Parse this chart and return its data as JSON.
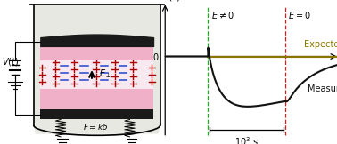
{
  "fig_width": 3.78,
  "fig_height": 1.62,
  "dpi": 100,
  "beaker_bg": "#e8e8e2",
  "pink_color": "#f0b0c8",
  "electrode_color": "#1a1a1a",
  "plus_color": "#aa0000",
  "minus_color": "#2244cc",
  "zero_line_color": "#8B7500",
  "measured_color": "#111111",
  "green_dashed": "#22aa22",
  "red_dashed": "#cc2222",
  "expected_label": "Expected",
  "measured_label": "Measured",
  "t1": 2.5,
  "t2": 7.0,
  "xlim": [
    0,
    10
  ],
  "ylim": [
    -0.9,
    0.6
  ]
}
